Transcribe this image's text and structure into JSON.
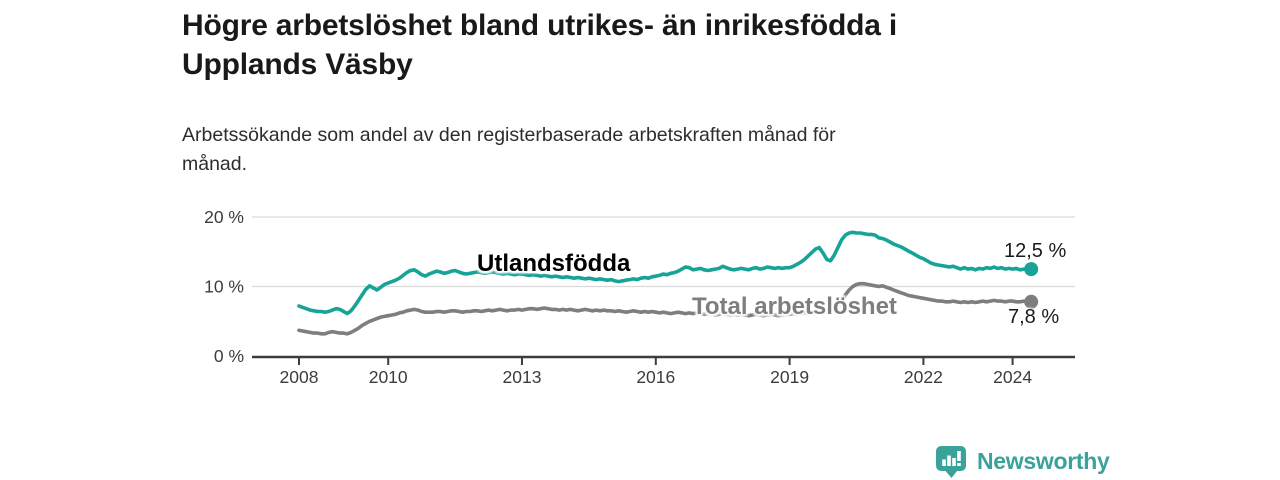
{
  "header": {
    "title_lines": [
      "Högre arbetslöshet bland utrikes- än inrikesfödda i",
      "Upplands Väsby"
    ],
    "subtitle_lines": [
      "Arbetssökande som andel av den registerbaserade arbetskraften månad för",
      "månad."
    ]
  },
  "chart_data": {
    "type": "line",
    "unit": "%",
    "x_start_year": 2008,
    "points_per_year": 12,
    "x_ticks": [
      2008,
      2010,
      2013,
      2016,
      2019,
      2022,
      2024
    ],
    "y_ticks": [
      {
        "value": 0,
        "label": "0 %"
      },
      {
        "value": 10,
        "label": "10 %"
      },
      {
        "value": 20,
        "label": "20 %"
      }
    ],
    "ylim": [
      0,
      20
    ],
    "grid": "horizontal",
    "legend_position": "inline-labels",
    "series": [
      {
        "name": "Utlandsfödda",
        "color": "#17a398",
        "end_value": 12.5,
        "end_label": "12,5 %",
        "values": [
          7.2,
          7.0,
          6.8,
          6.6,
          6.5,
          6.4,
          6.4,
          6.3,
          6.4,
          6.6,
          6.8,
          6.7,
          6.4,
          6.1,
          6.5,
          7.2,
          8.0,
          8.8,
          9.6,
          10.1,
          9.8,
          9.5,
          9.9,
          10.3,
          10.5,
          10.7,
          10.9,
          11.2,
          11.6,
          12.0,
          12.3,
          12.4,
          12.1,
          11.7,
          11.5,
          11.8,
          12.0,
          12.2,
          12.1,
          11.9,
          12.0,
          12.2,
          12.3,
          12.1,
          11.9,
          11.8,
          11.9,
          12.0,
          12.1,
          12.0,
          11.9,
          12.0,
          12.1,
          12.0,
          11.9,
          11.8,
          11.9,
          11.8,
          11.7,
          11.8,
          11.8,
          11.7,
          11.6,
          11.7,
          11.6,
          11.5,
          11.6,
          11.5,
          11.4,
          11.5,
          11.4,
          11.3,
          11.4,
          11.3,
          11.2,
          11.3,
          11.2,
          11.1,
          11.2,
          11.1,
          11.0,
          11.1,
          11.0,
          10.9,
          11.0,
          10.8,
          10.7,
          10.8,
          10.9,
          11.0,
          11.1,
          11.0,
          11.2,
          11.3,
          11.2,
          11.4,
          11.5,
          11.6,
          11.8,
          11.7,
          11.9,
          12.0,
          12.2,
          12.5,
          12.8,
          12.7,
          12.4,
          12.5,
          12.6,
          12.4,
          12.3,
          12.4,
          12.5,
          12.6,
          12.9,
          12.7,
          12.5,
          12.4,
          12.5,
          12.6,
          12.5,
          12.4,
          12.6,
          12.7,
          12.5,
          12.6,
          12.8,
          12.7,
          12.6,
          12.7,
          12.6,
          12.7,
          12.7,
          12.9,
          13.2,
          13.5,
          13.9,
          14.4,
          14.9,
          15.4,
          15.6,
          14.8,
          13.9,
          13.7,
          14.5,
          15.6,
          16.7,
          17.4,
          17.7,
          17.8,
          17.7,
          17.7,
          17.6,
          17.5,
          17.5,
          17.4,
          17.0,
          16.9,
          16.7,
          16.4,
          16.1,
          15.9,
          15.7,
          15.4,
          15.1,
          14.8,
          14.5,
          14.2,
          14.0,
          13.7,
          13.4,
          13.2,
          13.1,
          13.0,
          12.9,
          12.8,
          12.9,
          12.7,
          12.5,
          12.7,
          12.5,
          12.6,
          12.4,
          12.6,
          12.5,
          12.7,
          12.6,
          12.8,
          12.6,
          12.7,
          12.5,
          12.6,
          12.5,
          12.6,
          12.4,
          12.5,
          12.4,
          12.5
        ]
      },
      {
        "name": "Total arbetslöshet",
        "color": "#7e7e7e",
        "end_value": 7.8,
        "end_label": "7,8 %",
        "values": [
          3.7,
          3.6,
          3.5,
          3.4,
          3.3,
          3.3,
          3.2,
          3.2,
          3.4,
          3.5,
          3.4,
          3.3,
          3.3,
          3.2,
          3.4,
          3.7,
          4.0,
          4.4,
          4.7,
          5.0,
          5.2,
          5.4,
          5.6,
          5.7,
          5.8,
          5.9,
          6.0,
          6.2,
          6.3,
          6.5,
          6.6,
          6.7,
          6.6,
          6.4,
          6.3,
          6.3,
          6.3,
          6.4,
          6.4,
          6.3,
          6.4,
          6.5,
          6.5,
          6.4,
          6.3,
          6.4,
          6.4,
          6.5,
          6.5,
          6.4,
          6.5,
          6.6,
          6.5,
          6.6,
          6.7,
          6.6,
          6.5,
          6.6,
          6.6,
          6.7,
          6.6,
          6.7,
          6.8,
          6.8,
          6.7,
          6.8,
          6.9,
          6.8,
          6.7,
          6.7,
          6.6,
          6.7,
          6.6,
          6.7,
          6.6,
          6.5,
          6.6,
          6.7,
          6.6,
          6.5,
          6.6,
          6.5,
          6.6,
          6.5,
          6.5,
          6.4,
          6.5,
          6.4,
          6.3,
          6.4,
          6.5,
          6.4,
          6.3,
          6.4,
          6.3,
          6.4,
          6.3,
          6.2,
          6.3,
          6.2,
          6.1,
          6.2,
          6.3,
          6.2,
          6.1,
          6.2,
          6.1,
          6.2,
          6.1,
          6.0,
          6.1,
          6.0,
          5.9,
          6.0,
          6.1,
          6.0,
          5.9,
          6.0,
          5.9,
          6.0,
          5.9,
          5.8,
          5.9,
          6.0,
          5.9,
          5.8,
          5.9,
          6.0,
          5.9,
          5.8,
          5.9,
          6.0,
          6.0,
          6.1,
          6.0,
          6.1,
          6.2,
          6.1,
          6.2,
          6.3,
          6.2,
          6.3,
          6.4,
          6.5,
          6.7,
          7.0,
          7.8,
          8.8,
          9.5,
          10.0,
          10.3,
          10.4,
          10.4,
          10.3,
          10.2,
          10.1,
          10.0,
          10.1,
          9.9,
          9.7,
          9.5,
          9.3,
          9.1,
          8.9,
          8.7,
          8.6,
          8.5,
          8.4,
          8.3,
          8.2,
          8.1,
          8.0,
          7.9,
          7.9,
          7.8,
          7.8,
          7.9,
          7.8,
          7.7,
          7.8,
          7.7,
          7.8,
          7.7,
          7.8,
          7.9,
          7.8,
          7.9,
          8.0,
          7.9,
          7.9,
          7.8,
          7.9,
          7.9,
          7.8,
          7.8,
          7.9,
          7.8,
          7.8
        ]
      }
    ]
  },
  "colors": {
    "foreign_born": "#17a398",
    "total": "#7e7e7e",
    "axis": "#3d3d3d",
    "gridline": "#d9d9d9",
    "brand": "#3aa29b"
  },
  "footer": {
    "brand": "Newsworthy"
  }
}
